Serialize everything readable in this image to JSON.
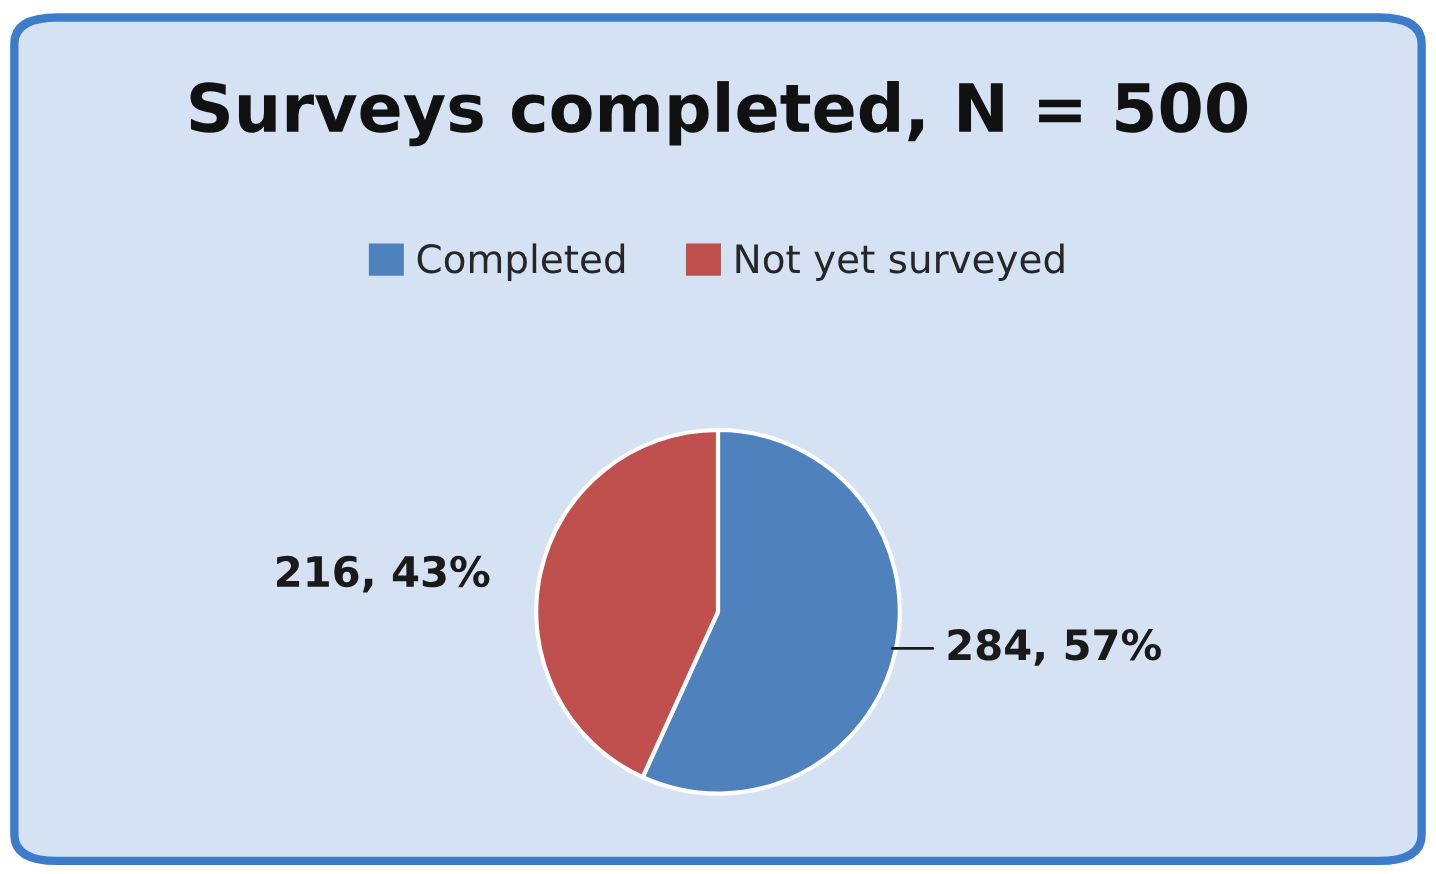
{
  "chart_data": {
    "type": "pie",
    "title": "Surveys completed, N = 500",
    "categories": [
      "Completed",
      "Not yet surveyed"
    ],
    "values": [
      284,
      216
    ],
    "colors": [
      "#4f81bd",
      "#c0504d"
    ],
    "value_labels": [
      "284, 57%",
      "216, 43%"
    ],
    "legend": "top"
  }
}
